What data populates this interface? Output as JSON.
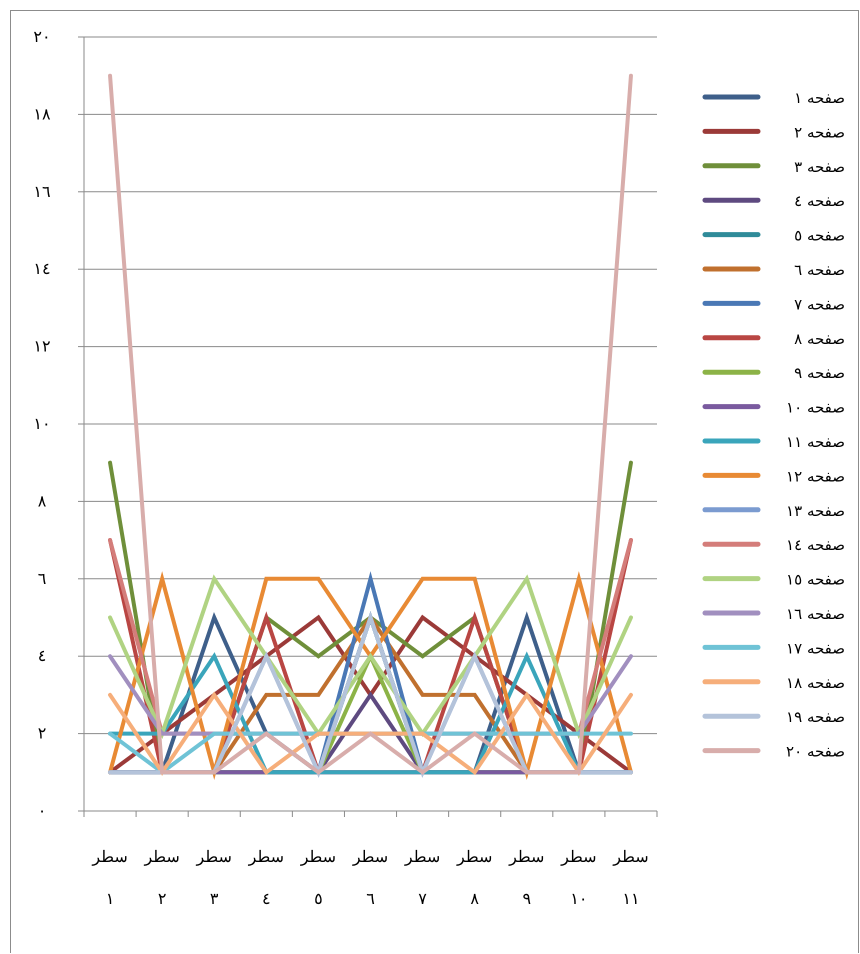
{
  "chart_data": {
    "type": "line",
    "title": "",
    "xlabel": "",
    "ylabel": "",
    "ylim": [
      0,
      20
    ],
    "y_ticks": [
      "٠",
      "٢",
      "٤",
      "٦",
      "٨",
      "١٠",
      "١٢",
      "١٤",
      "١٦",
      "١٨",
      "٢٠"
    ],
    "categories": [
      {
        "word": "سطر",
        "num": "١"
      },
      {
        "word": "سطر",
        "num": "٢"
      },
      {
        "word": "سطر",
        "num": "٣"
      },
      {
        "word": "سطر",
        "num": "٤"
      },
      {
        "word": "سطر",
        "num": "٥"
      },
      {
        "word": "سطر",
        "num": "٦"
      },
      {
        "word": "سطر",
        "num": "٧"
      },
      {
        "word": "سطر",
        "num": "٨"
      },
      {
        "word": "سطر",
        "num": "٩"
      },
      {
        "word": "سطر",
        "num": "١٠"
      },
      {
        "word": "سطر",
        "num": "١١"
      }
    ],
    "grid": true,
    "legend_position": "right",
    "series": [
      {
        "name": "صفحه ١",
        "color": "#3e5f8a",
        "values": [
          1,
          1,
          5,
          2,
          1,
          5,
          1,
          1,
          5,
          1,
          1
        ]
      },
      {
        "name": "صفحه ٢",
        "color": "#9b3a38",
        "values": [
          1,
          2,
          3,
          4,
          5,
          3,
          5,
          4,
          3,
          2,
          1
        ]
      },
      {
        "name": "صفحه ٣",
        "color": "#6f8f3a",
        "values": [
          9,
          1,
          1,
          5,
          4,
          5,
          4,
          5,
          1,
          1,
          9
        ]
      },
      {
        "name": "صفحه ٤",
        "color": "#5e4a80",
        "values": [
          1,
          1,
          1,
          1,
          1,
          3,
          1,
          1,
          1,
          1,
          1
        ]
      },
      {
        "name": "صفحه ٥",
        "color": "#2f8b99",
        "values": [
          1,
          1,
          1,
          1,
          1,
          5,
          1,
          1,
          1,
          1,
          1
        ]
      },
      {
        "name": "صفحه ٦",
        "color": "#c0702e",
        "values": [
          1,
          1,
          1,
          3,
          3,
          5,
          3,
          3,
          1,
          1,
          1
        ]
      },
      {
        "name": "صفحه ٧",
        "color": "#4a78b5",
        "values": [
          1,
          1,
          1,
          1,
          1,
          6,
          1,
          1,
          1,
          1,
          1
        ]
      },
      {
        "name": "صفحه ٨",
        "color": "#b94643",
        "values": [
          7,
          1,
          1,
          5,
          1,
          1,
          1,
          5,
          1,
          1,
          7
        ]
      },
      {
        "name": "صفحه ٩",
        "color": "#8cb347",
        "values": [
          1,
          1,
          1,
          1,
          1,
          4,
          1,
          1,
          1,
          1,
          1
        ]
      },
      {
        "name": "صفحه ١٠",
        "color": "#7a5a9f",
        "values": [
          1,
          1,
          1,
          1,
          1,
          1,
          1,
          1,
          1,
          1,
          1
        ]
      },
      {
        "name": "صفحه ١١",
        "color": "#3aa5bb",
        "values": [
          2,
          2,
          4,
          1,
          1,
          1,
          1,
          1,
          4,
          1,
          1
        ]
      },
      {
        "name": "صفحه ١٢",
        "color": "#e88a34",
        "values": [
          1,
          6,
          1,
          6,
          6,
          4,
          6,
          6,
          1,
          6,
          1
        ]
      },
      {
        "name": "صفحه ١٣",
        "color": "#7b9bd0",
        "values": [
          1,
          1,
          1,
          4,
          1,
          5,
          1,
          4,
          1,
          1,
          1
        ]
      },
      {
        "name": "صفحه ١٤",
        "color": "#d47d7a",
        "values": [
          7,
          2,
          2,
          2,
          2,
          2,
          2,
          2,
          2,
          2,
          7
        ]
      },
      {
        "name": "صفحه ١٥",
        "color": "#b0d382",
        "values": [
          5,
          2,
          6,
          4,
          2,
          4,
          2,
          4,
          6,
          2,
          5
        ]
      },
      {
        "name": "صفحه ١٦",
        "color": "#a18fbf",
        "values": [
          4,
          2,
          2,
          2,
          2,
          2,
          2,
          2,
          2,
          2,
          4
        ]
      },
      {
        "name": "صفحه ١٧",
        "color": "#6fc3d6",
        "values": [
          2,
          1,
          2,
          2,
          2,
          2,
          2,
          2,
          2,
          2,
          2
        ]
      },
      {
        "name": "صفحه ١٨",
        "color": "#f6ae7a",
        "values": [
          3,
          1,
          3,
          1,
          2,
          2,
          2,
          1,
          3,
          1,
          3
        ]
      },
      {
        "name": "صفحه ١٩",
        "color": "#b4c3da",
        "values": [
          1,
          1,
          1,
          4,
          1,
          5,
          1,
          4,
          1,
          1,
          1
        ]
      },
      {
        "name": "صفحه ٢٠",
        "color": "#d8adab",
        "values": [
          19,
          1,
          1,
          2,
          1,
          2,
          1,
          2,
          1,
          1,
          19
        ]
      }
    ]
  }
}
